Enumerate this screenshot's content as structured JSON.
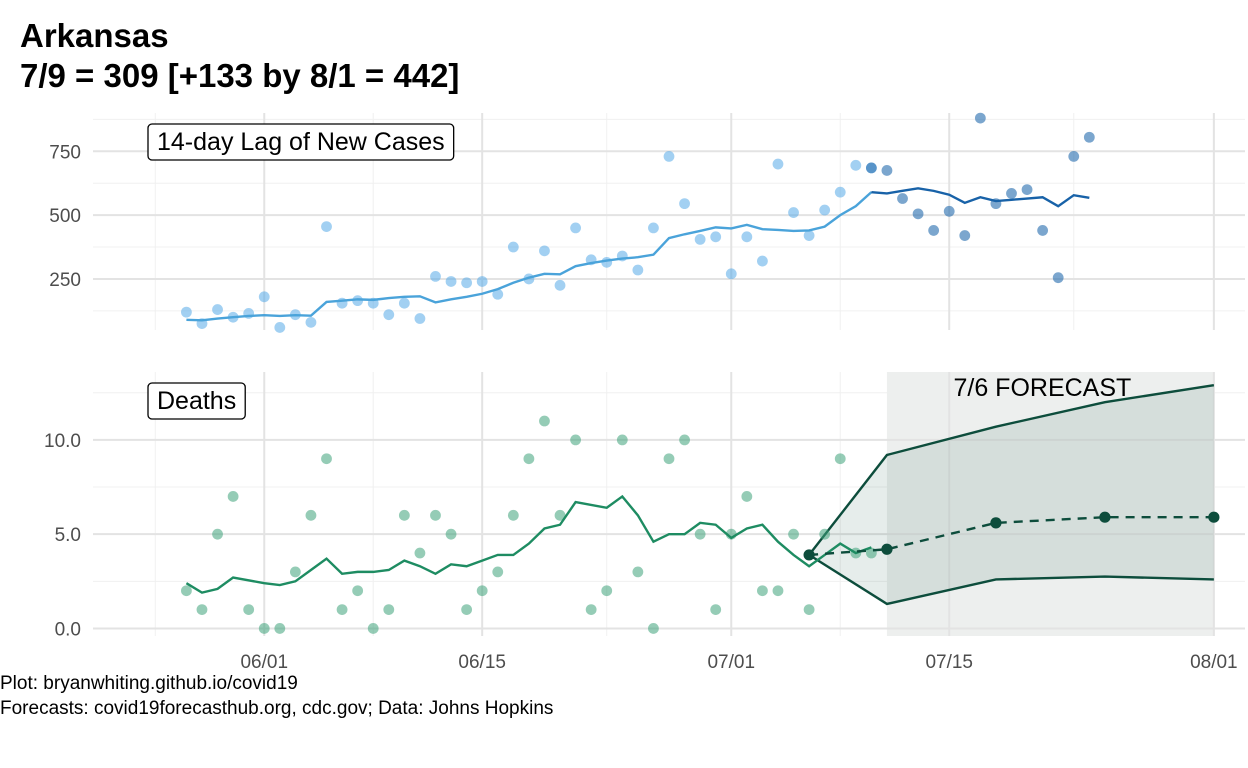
{
  "title": {
    "line1": "Arkansas",
    "line2": "7/9 = 309 [+133 by 8/1 = 442]"
  },
  "caption": {
    "line1": "Plot: bryanwhiting.github.io/covid19",
    "line2": "Forecasts: covid19forecasthub.org, cdc.gov; Data: Johns Hopkins"
  },
  "colors": {
    "cases_light": "#55a9e8",
    "cases_dark": "#2a6fb0",
    "cases_line": "#4aa3da",
    "cases_line_dark": "#1862a8",
    "deaths_point": "#3ea27a",
    "deaths_line": "#1e8c62",
    "forecast": "#0d4d3c",
    "forecast_band": "#edefee"
  },
  "chart_data": [
    {
      "type": "scatter",
      "panel_label": "14-day Lag of New Cases",
      "x_type": "date",
      "xlim": [
        "2020-05-21",
        "2020-08-03"
      ],
      "ylim": [
        50,
        900
      ],
      "y_ticks": [
        250,
        500,
        750
      ],
      "y_tick_labels": [
        "250",
        "500",
        "750"
      ],
      "grid": true,
      "points": [
        {
          "x": "2020-05-27",
          "y": 120
        },
        {
          "x": "2020-05-28",
          "y": 75
        },
        {
          "x": "2020-05-29",
          "y": 130
        },
        {
          "x": "2020-05-30",
          "y": 100
        },
        {
          "x": "2020-05-31",
          "y": 115
        },
        {
          "x": "2020-06-01",
          "y": 180
        },
        {
          "x": "2020-06-02",
          "y": 60
        },
        {
          "x": "2020-06-03",
          "y": 110
        },
        {
          "x": "2020-06-04",
          "y": 80
        },
        {
          "x": "2020-06-05",
          "y": 455
        },
        {
          "x": "2020-06-06",
          "y": 155
        },
        {
          "x": "2020-06-07",
          "y": 165
        },
        {
          "x": "2020-06-08",
          "y": 155
        },
        {
          "x": "2020-06-09",
          "y": 110
        },
        {
          "x": "2020-06-10",
          "y": 155
        },
        {
          "x": "2020-06-11",
          "y": 95
        },
        {
          "x": "2020-06-12",
          "y": 260
        },
        {
          "x": "2020-06-13",
          "y": 240
        },
        {
          "x": "2020-06-14",
          "y": 235
        },
        {
          "x": "2020-06-15",
          "y": 240
        },
        {
          "x": "2020-06-16",
          "y": 190
        },
        {
          "x": "2020-06-17",
          "y": 375
        },
        {
          "x": "2020-06-18",
          "y": 250
        },
        {
          "x": "2020-06-19",
          "y": 360
        },
        {
          "x": "2020-06-20",
          "y": 225
        },
        {
          "x": "2020-06-21",
          "y": 450
        },
        {
          "x": "2020-06-22",
          "y": 325
        },
        {
          "x": "2020-06-23",
          "y": 315
        },
        {
          "x": "2020-06-24",
          "y": 340
        },
        {
          "x": "2020-06-25",
          "y": 285
        },
        {
          "x": "2020-06-26",
          "y": 450
        },
        {
          "x": "2020-06-27",
          "y": 730
        },
        {
          "x": "2020-06-28",
          "y": 545
        },
        {
          "x": "2020-06-29",
          "y": 405
        },
        {
          "x": "2020-06-30",
          "y": 415
        },
        {
          "x": "2020-07-01",
          "y": 270
        },
        {
          "x": "2020-07-02",
          "y": 415
        },
        {
          "x": "2020-07-03",
          "y": 320
        },
        {
          "x": "2020-07-04",
          "y": 700
        },
        {
          "x": "2020-07-05",
          "y": 510
        },
        {
          "x": "2020-07-06",
          "y": 420
        },
        {
          "x": "2020-07-07",
          "y": 520
        },
        {
          "x": "2020-07-08",
          "y": 590
        },
        {
          "x": "2020-07-09",
          "y": 695
        },
        {
          "x": "2020-07-10",
          "y": 685
        },
        {
          "x": "2020-07-10",
          "y": 685,
          "dark": true
        },
        {
          "x": "2020-07-11",
          "y": 675,
          "dark": true
        },
        {
          "x": "2020-07-12",
          "y": 565,
          "dark": true
        },
        {
          "x": "2020-07-13",
          "y": 505,
          "dark": true
        },
        {
          "x": "2020-07-14",
          "y": 440,
          "dark": true
        },
        {
          "x": "2020-07-15",
          "y": 515,
          "dark": true
        },
        {
          "x": "2020-07-16",
          "y": 420,
          "dark": true
        },
        {
          "x": "2020-07-17",
          "y": 880,
          "dark": true
        },
        {
          "x": "2020-07-18",
          "y": 545,
          "dark": true
        },
        {
          "x": "2020-07-19",
          "y": 585,
          "dark": true
        },
        {
          "x": "2020-07-20",
          "y": 600,
          "dark": true
        },
        {
          "x": "2020-07-21",
          "y": 440,
          "dark": true
        },
        {
          "x": "2020-07-22",
          "y": 255,
          "dark": true
        },
        {
          "x": "2020-07-23",
          "y": 730,
          "dark": true
        },
        {
          "x": "2020-07-24",
          "y": 805,
          "dark": true
        }
      ],
      "trend": [
        {
          "x": "2020-05-27",
          "y": 90
        },
        {
          "x": "2020-05-28",
          "y": 88
        },
        {
          "x": "2020-05-29",
          "y": 95
        },
        {
          "x": "2020-05-30",
          "y": 100
        },
        {
          "x": "2020-05-31",
          "y": 105
        },
        {
          "x": "2020-06-01",
          "y": 108
        },
        {
          "x": "2020-06-02",
          "y": 105
        },
        {
          "x": "2020-06-03",
          "y": 108
        },
        {
          "x": "2020-06-04",
          "y": 106
        },
        {
          "x": "2020-06-05",
          "y": 160
        },
        {
          "x": "2020-06-06",
          "y": 165
        },
        {
          "x": "2020-06-07",
          "y": 170
        },
        {
          "x": "2020-06-08",
          "y": 168
        },
        {
          "x": "2020-06-09",
          "y": 175
        },
        {
          "x": "2020-06-10",
          "y": 180
        },
        {
          "x": "2020-06-11",
          "y": 182
        },
        {
          "x": "2020-06-12",
          "y": 158
        },
        {
          "x": "2020-06-13",
          "y": 170
        },
        {
          "x": "2020-06-14",
          "y": 180
        },
        {
          "x": "2020-06-15",
          "y": 192
        },
        {
          "x": "2020-06-16",
          "y": 210
        },
        {
          "x": "2020-06-17",
          "y": 235
        },
        {
          "x": "2020-06-18",
          "y": 255
        },
        {
          "x": "2020-06-19",
          "y": 270
        },
        {
          "x": "2020-06-20",
          "y": 268
        },
        {
          "x": "2020-06-21",
          "y": 300
        },
        {
          "x": "2020-06-22",
          "y": 312
        },
        {
          "x": "2020-06-23",
          "y": 322
        },
        {
          "x": "2020-06-24",
          "y": 330
        },
        {
          "x": "2020-06-25",
          "y": 335
        },
        {
          "x": "2020-06-26",
          "y": 345
        },
        {
          "x": "2020-06-27",
          "y": 410
        },
        {
          "x": "2020-06-28",
          "y": 425
        },
        {
          "x": "2020-06-29",
          "y": 438
        },
        {
          "x": "2020-06-30",
          "y": 452
        },
        {
          "x": "2020-07-01",
          "y": 448
        },
        {
          "x": "2020-07-02",
          "y": 462
        },
        {
          "x": "2020-07-03",
          "y": 445
        },
        {
          "x": "2020-07-04",
          "y": 442
        },
        {
          "x": "2020-07-05",
          "y": 438
        },
        {
          "x": "2020-07-06",
          "y": 440
        },
        {
          "x": "2020-07-07",
          "y": 455
        },
        {
          "x": "2020-07-08",
          "y": 500
        },
        {
          "x": "2020-07-09",
          "y": 535
        },
        {
          "x": "2020-07-10",
          "y": 590
        },
        {
          "x": "2020-07-10",
          "y": 590,
          "dark": true
        },
        {
          "x": "2020-07-11",
          "y": 585,
          "dark": true
        },
        {
          "x": "2020-07-12",
          "y": 595,
          "dark": true
        },
        {
          "x": "2020-07-13",
          "y": 605,
          "dark": true
        },
        {
          "x": "2020-07-14",
          "y": 595,
          "dark": true
        },
        {
          "x": "2020-07-15",
          "y": 580,
          "dark": true
        },
        {
          "x": "2020-07-16",
          "y": 548,
          "dark": true
        },
        {
          "x": "2020-07-17",
          "y": 570,
          "dark": true
        },
        {
          "x": "2020-07-18",
          "y": 555,
          "dark": true
        },
        {
          "x": "2020-07-19",
          "y": 560,
          "dark": true
        },
        {
          "x": "2020-07-20",
          "y": 565,
          "dark": true
        },
        {
          "x": "2020-07-21",
          "y": 570,
          "dark": true
        },
        {
          "x": "2020-07-22",
          "y": 535,
          "dark": true
        },
        {
          "x": "2020-07-23",
          "y": 578,
          "dark": true
        },
        {
          "x": "2020-07-24",
          "y": 568,
          "dark": true
        }
      ]
    },
    {
      "type": "scatter",
      "panel_label": "Deaths",
      "x_type": "date",
      "xlim": [
        "2020-05-21",
        "2020-08-03"
      ],
      "ylim": [
        -0.4,
        13.6
      ],
      "y_ticks": [
        0,
        5,
        10
      ],
      "y_tick_labels": [
        "0.0",
        "5.0",
        "10.0"
      ],
      "x_ticks": [
        "2020-06-01",
        "2020-06-15",
        "2020-07-01",
        "2020-07-15",
        "2020-08-01"
      ],
      "x_tick_labels": [
        "06/01",
        "06/15",
        "07/01",
        "07/15",
        "08/01"
      ],
      "grid": true,
      "points": [
        {
          "x": "2020-05-27",
          "y": 2
        },
        {
          "x": "2020-05-28",
          "y": 1
        },
        {
          "x": "2020-05-29",
          "y": 5
        },
        {
          "x": "2020-05-30",
          "y": 7
        },
        {
          "x": "2020-05-31",
          "y": 1
        },
        {
          "x": "2020-06-01",
          "y": 0
        },
        {
          "x": "2020-06-02",
          "y": 0
        },
        {
          "x": "2020-06-03",
          "y": 3
        },
        {
          "x": "2020-06-04",
          "y": 6
        },
        {
          "x": "2020-06-05",
          "y": 9
        },
        {
          "x": "2020-06-06",
          "y": 1
        },
        {
          "x": "2020-06-07",
          "y": 2
        },
        {
          "x": "2020-06-08",
          "y": 0
        },
        {
          "x": "2020-06-09",
          "y": 1
        },
        {
          "x": "2020-06-10",
          "y": 6
        },
        {
          "x": "2020-06-11",
          "y": 4
        },
        {
          "x": "2020-06-12",
          "y": 6
        },
        {
          "x": "2020-06-13",
          "y": 5
        },
        {
          "x": "2020-06-14",
          "y": 1
        },
        {
          "x": "2020-06-15",
          "y": 2
        },
        {
          "x": "2020-06-16",
          "y": 3
        },
        {
          "x": "2020-06-17",
          "y": 6
        },
        {
          "x": "2020-06-18",
          "y": 9
        },
        {
          "x": "2020-06-19",
          "y": 11
        },
        {
          "x": "2020-06-20",
          "y": 6
        },
        {
          "x": "2020-06-21",
          "y": 10
        },
        {
          "x": "2020-06-22",
          "y": 1
        },
        {
          "x": "2020-06-23",
          "y": 2
        },
        {
          "x": "2020-06-24",
          "y": 10
        },
        {
          "x": "2020-06-25",
          "y": 3
        },
        {
          "x": "2020-06-26",
          "y": 0
        },
        {
          "x": "2020-06-27",
          "y": 9
        },
        {
          "x": "2020-06-28",
          "y": 10
        },
        {
          "x": "2020-06-29",
          "y": 5
        },
        {
          "x": "2020-06-30",
          "y": 1
        },
        {
          "x": "2020-07-01",
          "y": 5
        },
        {
          "x": "2020-07-02",
          "y": 7
        },
        {
          "x": "2020-07-03",
          "y": 2
        },
        {
          "x": "2020-07-04",
          "y": 2
        },
        {
          "x": "2020-07-05",
          "y": 5
        },
        {
          "x": "2020-07-06",
          "y": 1
        },
        {
          "x": "2020-07-07",
          "y": 5
        },
        {
          "x": "2020-07-08",
          "y": 9
        },
        {
          "x": "2020-07-09",
          "y": 4
        },
        {
          "x": "2020-07-10",
          "y": 4
        }
      ],
      "trend": [
        {
          "x": "2020-05-27",
          "y": 2.4
        },
        {
          "x": "2020-05-28",
          "y": 1.9
        },
        {
          "x": "2020-05-29",
          "y": 2.1
        },
        {
          "x": "2020-05-30",
          "y": 2.7
        },
        {
          "x": "2020-06-01",
          "y": 2.4
        },
        {
          "x": "2020-06-02",
          "y": 2.3
        },
        {
          "x": "2020-06-03",
          "y": 2.5
        },
        {
          "x": "2020-06-04",
          "y": 3.1
        },
        {
          "x": "2020-06-05",
          "y": 3.7
        },
        {
          "x": "2020-06-06",
          "y": 2.9
        },
        {
          "x": "2020-06-07",
          "y": 3.0
        },
        {
          "x": "2020-06-08",
          "y": 3.0
        },
        {
          "x": "2020-06-09",
          "y": 3.1
        },
        {
          "x": "2020-06-10",
          "y": 3.6
        },
        {
          "x": "2020-06-11",
          "y": 3.3
        },
        {
          "x": "2020-06-12",
          "y": 2.9
        },
        {
          "x": "2020-06-13",
          "y": 3.4
        },
        {
          "x": "2020-06-14",
          "y": 3.3
        },
        {
          "x": "2020-06-15",
          "y": 3.6
        },
        {
          "x": "2020-06-16",
          "y": 3.9
        },
        {
          "x": "2020-06-17",
          "y": 3.9
        },
        {
          "x": "2020-06-18",
          "y": 4.5
        },
        {
          "x": "2020-06-19",
          "y": 5.3
        },
        {
          "x": "2020-06-20",
          "y": 5.5
        },
        {
          "x": "2020-06-21",
          "y": 6.7
        },
        {
          "x": "2020-06-23",
          "y": 6.4
        },
        {
          "x": "2020-06-24",
          "y": 7.0
        },
        {
          "x": "2020-06-25",
          "y": 6.0
        },
        {
          "x": "2020-06-26",
          "y": 4.6
        },
        {
          "x": "2020-06-27",
          "y": 5.0
        },
        {
          "x": "2020-06-28",
          "y": 5.0
        },
        {
          "x": "2020-06-29",
          "y": 5.6
        },
        {
          "x": "2020-06-30",
          "y": 5.5
        },
        {
          "x": "2020-07-01",
          "y": 4.8
        },
        {
          "x": "2020-07-02",
          "y": 5.3
        },
        {
          "x": "2020-07-03",
          "y": 5.5
        },
        {
          "x": "2020-07-04",
          "y": 4.6
        },
        {
          "x": "2020-07-05",
          "y": 3.9
        },
        {
          "x": "2020-07-06",
          "y": 3.3
        },
        {
          "x": "2020-07-07",
          "y": 3.9
        },
        {
          "x": "2020-07-08",
          "y": 4.5
        },
        {
          "x": "2020-07-09",
          "y": 4.0
        },
        {
          "x": "2020-07-10",
          "y": 4.3
        }
      ],
      "forecast": {
        "label": "7/6 FORECAST",
        "shade_from": "2020-07-11",
        "shade_to": "2020-08-01",
        "points": [
          {
            "x": "2020-07-06",
            "y": 3.9,
            "lower": 3.9,
            "upper": 3.9
          },
          {
            "x": "2020-07-11",
            "y": 4.2,
            "lower": 1.3,
            "upper": 9.2
          },
          {
            "x": "2020-07-18",
            "y": 5.6,
            "lower": 2.6,
            "upper": 10.7
          },
          {
            "x": "2020-07-25",
            "y": 5.9,
            "lower": 2.75,
            "upper": 12.0
          },
          {
            "x": "2020-08-01",
            "y": 5.9,
            "lower": 2.6,
            "upper": 12.9
          }
        ]
      }
    }
  ]
}
